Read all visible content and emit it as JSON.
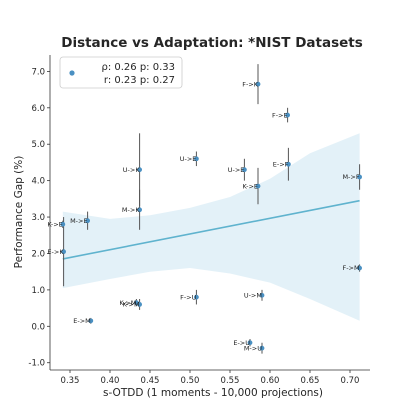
{
  "chart_data": {
    "type": "scatter",
    "title": "Distance vs Adaptation: *NIST Datasets",
    "xlabel": "s-OTDD (1 moments - 10,000 projections)",
    "ylabel": "Performance Gap (%)",
    "xlim": [
      0.325,
      0.725
    ],
    "ylim": [
      -1.2,
      7.45
    ],
    "xticks": [
      "0.35",
      "0.40",
      "0.45",
      "0.50",
      "0.55",
      "0.60",
      "0.65",
      "0.70"
    ],
    "yticks": [
      "-1.0",
      "0.0",
      "1.0",
      "2.0",
      "3.0",
      "4.0",
      "5.0",
      "6.0",
      "7.0"
    ],
    "grid": false,
    "legend": {
      "placement": "top-left",
      "lines": [
        "ρ: 0.26  p: 0.33",
        "r: 0.23  p: 0.27"
      ]
    },
    "colors": {
      "points": "#4a90c2",
      "fit_line": "#5fb3ce",
      "confidence_band": "#d9ecf5",
      "error_bars": "#555555"
    },
    "points": [
      {
        "label": "F->K",
        "x": 0.585,
        "y": 6.65,
        "err": 0.55
      },
      {
        "label": "F->E",
        "x": 0.622,
        "y": 5.8,
        "err": 0.2
      },
      {
        "label": "U->K",
        "x": 0.437,
        "y": 4.3,
        "err": 1.0
      },
      {
        "label": "U->E",
        "x": 0.508,
        "y": 4.6,
        "err": 0.2
      },
      {
        "label": "U->E",
        "x": 0.568,
        "y": 4.3,
        "err": 0.3
      },
      {
        "label": "E->F",
        "x": 0.623,
        "y": 4.45,
        "err": 0.45
      },
      {
        "label": "K->E",
        "x": 0.585,
        "y": 3.85,
        "err": 0.5
      },
      {
        "label": "M->F",
        "x": 0.712,
        "y": 4.1,
        "err": 0.35
      },
      {
        "label": "M->K",
        "x": 0.437,
        "y": 3.2,
        "err": 0.55
      },
      {
        "label": "K->E",
        "x": 0.341,
        "y": 2.8,
        "err": 0.1
      },
      {
        "label": "M->E",
        "x": 0.372,
        "y": 2.9,
        "err": 0.25
      },
      {
        "label": "E->K",
        "x": 0.342,
        "y": 2.05,
        "err": 0.95
      },
      {
        "label": "F->M",
        "x": 0.712,
        "y": 1.6,
        "err": 0.1
      },
      {
        "label": "U->M",
        "x": 0.59,
        "y": 0.85,
        "err": 0.15
      },
      {
        "label": "F->U",
        "x": 0.508,
        "y": 0.8,
        "err": 0.2
      },
      {
        "label": "K->M",
        "x": 0.433,
        "y": 0.65,
        "err": 0.1
      },
      {
        "label": "K->M",
        "x": 0.437,
        "y": 0.6,
        "err": 0.15
      },
      {
        "label": "E->M",
        "x": 0.376,
        "y": 0.15,
        "err": 0.08
      },
      {
        "label": "E->U",
        "x": 0.575,
        "y": -0.45,
        "err": 0.1
      },
      {
        "label": "M->U",
        "x": 0.59,
        "y": -0.6,
        "err": 0.15
      }
    ],
    "fit": {
      "x0": 0.341,
      "y0": 1.85,
      "x1": 0.712,
      "y1": 3.45
    },
    "band": {
      "x": [
        0.341,
        0.4,
        0.45,
        0.5,
        0.55,
        0.6,
        0.65,
        0.712
      ],
      "lower": [
        1.05,
        1.3,
        1.5,
        1.6,
        1.45,
        1.2,
        0.75,
        0.15
      ],
      "upper": [
        3.15,
        2.95,
        3.05,
        3.25,
        3.55,
        4.05,
        4.75,
        5.3
      ]
    }
  }
}
